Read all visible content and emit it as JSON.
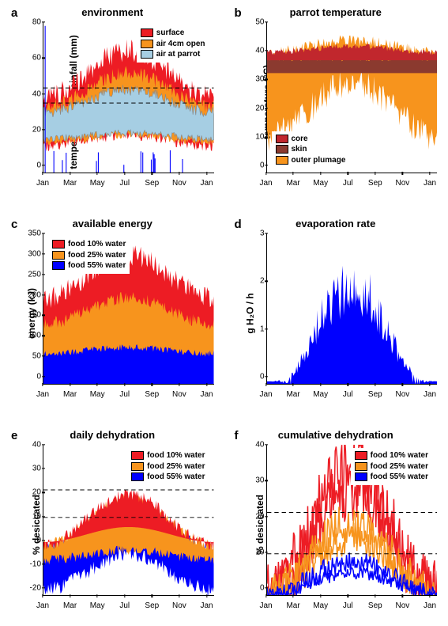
{
  "colors": {
    "red": "#ed1c24",
    "orange": "#f7941d",
    "lightblue": "#a6cee3",
    "blue": "#0000ff",
    "brown": "#8b3a2f",
    "darkred": "#c1272d",
    "black": "#000000"
  },
  "months": [
    "Jan",
    "Mar",
    "May",
    "Jul",
    "Sep",
    "Nov",
    "Jan"
  ],
  "panels": {
    "a": {
      "letter": "a",
      "title": "environment",
      "ylabel": "temperature (°C)  rainfall (mm)",
      "ylim": [
        0,
        80
      ],
      "ytick_step": 20,
      "hlines": [
        37,
        45
      ],
      "legend_pos": "top-right",
      "legend": [
        {
          "color": "red",
          "label": "surface"
        },
        {
          "color": "orange",
          "label": "air 4cm open"
        },
        {
          "color": "lightblue",
          "label": "air at parrot"
        }
      ]
    },
    "b": {
      "letter": "b",
      "title": "parrot temperature",
      "ylabel": "temperature (°C)",
      "ylim": [
        0,
        50
      ],
      "ytick_step": 10,
      "legend_pos": "bottom-left",
      "legend": [
        {
          "color": "darkred",
          "label": "core"
        },
        {
          "color": "brown",
          "label": "skin"
        },
        {
          "color": "orange",
          "label": "outer plumage"
        }
      ]
    },
    "c": {
      "letter": "c",
      "title": "available energy",
      "ylabel": "energy (kJ)",
      "ylim": [
        0,
        350
      ],
      "ytick_step": 50,
      "legend_pos": "top-left",
      "legend": [
        {
          "color": "red",
          "label": "food 10% water"
        },
        {
          "color": "orange",
          "label": "food 25% water"
        },
        {
          "color": "blue",
          "label": "food 55% water"
        }
      ]
    },
    "d": {
      "letter": "d",
      "title": "evaporation rate",
      "ylabel": "g H₂O / h",
      "ylim": [
        0,
        3
      ],
      "ytick_step": 1
    },
    "e": {
      "letter": "e",
      "title": "daily dehydration",
      "ylabel": "% desiccated",
      "ylim": [
        -20,
        40
      ],
      "ytick_step": 10,
      "hlines": [
        11,
        22
      ],
      "legend_pos": "top-right",
      "legend": [
        {
          "color": "red",
          "label": "food 10% water"
        },
        {
          "color": "orange",
          "label": "food 25% water"
        },
        {
          "color": "blue",
          "label": "food 55% water"
        }
      ]
    },
    "f": {
      "letter": "f",
      "title": "cumulative dehydration",
      "ylabel": "% desiccated",
      "ylim": [
        0,
        40
      ],
      "ytick_step": 10,
      "hlines": [
        11,
        22
      ],
      "legend_pos": "top-right-inset",
      "legend": [
        {
          "color": "red",
          "label": "food 10% water"
        },
        {
          "color": "orange",
          "label": "food 25% water"
        },
        {
          "color": "blue",
          "label": "food 55% water"
        }
      ]
    }
  }
}
